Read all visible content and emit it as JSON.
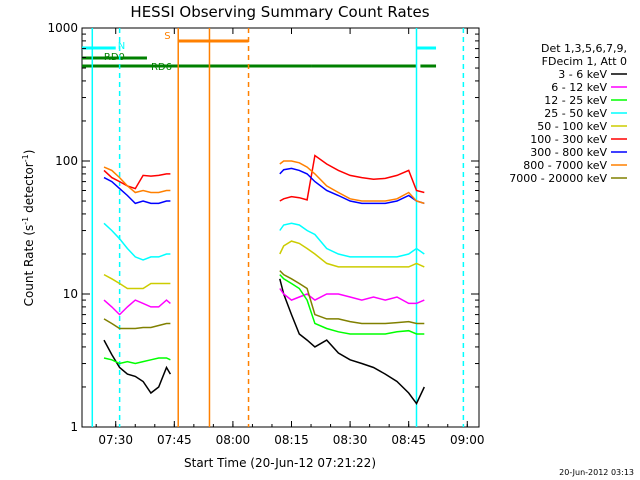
{
  "chart_data": {
    "type": "line",
    "title": "HESSI Observing Summary Count Rates",
    "xlabel": "Start Time (20-Jun-12 07:21:22)",
    "ylabel_main": "Count Rate (s",
    "ylabel_sup1": "-1",
    "ylabel_mid": " detector",
    "ylabel_sup2": "-1",
    "ylabel_end": ")",
    "yscale": "log",
    "ylim": [
      1,
      1000
    ],
    "xlim": [
      "07:21:22",
      "09:03:00"
    ],
    "x_ticks": [
      "07:30",
      "07:45",
      "08:00",
      "08:15",
      "08:30",
      "08:45",
      "09:00"
    ],
    "y_ticks": [
      "1",
      "10",
      "100",
      "1000"
    ],
    "stamp": "20-Jun-2012 03:13",
    "legend_header": [
      "Det 1,3,5,6,7,9,",
      "FDecim 1, Att 0"
    ],
    "series": [
      {
        "name": "3 - 6 keV",
        "color": "#000000",
        "x": [
          "07:27",
          "07:29",
          "07:31",
          "07:33",
          "07:35",
          "07:37",
          "07:39",
          "07:41",
          "07:43",
          "07:44",
          "08:12",
          "08:13",
          "08:15",
          "08:17",
          "08:19",
          "08:21",
          "08:24",
          "08:27",
          "08:30",
          "08:33",
          "08:36",
          "08:39",
          "08:42",
          "08:45",
          "08:47",
          "08:49"
        ],
        "y": [
          4.5,
          3.5,
          2.8,
          2.5,
          2.4,
          2.2,
          1.8,
          2.0,
          2.8,
          2.5,
          13,
          10,
          7,
          5,
          4.5,
          4,
          4.5,
          3.6,
          3.2,
          3,
          2.8,
          2.5,
          2.2,
          1.8,
          1.5,
          2
        ]
      },
      {
        "name": "6 - 12 keV",
        "color": "#ff00ff",
        "x": [
          "07:27",
          "07:29",
          "07:31",
          "07:33",
          "07:35",
          "07:37",
          "07:39",
          "07:41",
          "07:43",
          "07:44",
          "08:12",
          "08:13",
          "08:15",
          "08:17",
          "08:19",
          "08:21",
          "08:24",
          "08:27",
          "08:30",
          "08:33",
          "08:36",
          "08:39",
          "08:42",
          "08:45",
          "08:47",
          "08:49"
        ],
        "y": [
          9,
          8,
          7,
          8,
          9,
          8.5,
          8,
          8,
          9,
          8.5,
          11,
          10,
          9,
          9.5,
          10,
          9,
          10,
          10,
          9.5,
          9,
          9.5,
          9,
          9.5,
          8.5,
          8.5,
          9
        ]
      },
      {
        "name": "12 - 25 keV",
        "color": "#00ff00",
        "x": [
          "07:27",
          "07:29",
          "07:31",
          "07:33",
          "07:35",
          "07:37",
          "07:39",
          "07:41",
          "07:43",
          "07:44",
          "08:12",
          "08:13",
          "08:15",
          "08:17",
          "08:19",
          "08:21",
          "08:24",
          "08:27",
          "08:30",
          "08:33",
          "08:36",
          "08:39",
          "08:42",
          "08:45",
          "08:47",
          "08:49"
        ],
        "y": [
          3.3,
          3.2,
          3.0,
          3.1,
          3.0,
          3.1,
          3.2,
          3.3,
          3.3,
          3.2,
          14,
          13,
          12,
          11,
          9,
          6,
          5.5,
          5.2,
          5,
          5,
          5,
          5,
          5.2,
          5.3,
          5,
          5
        ]
      },
      {
        "name": "25 - 50 keV",
        "color": "#00ffff",
        "x": [
          "07:27",
          "07:29",
          "07:31",
          "07:33",
          "07:35",
          "07:37",
          "07:39",
          "07:41",
          "07:43",
          "07:44",
          "08:12",
          "08:13",
          "08:15",
          "08:17",
          "08:19",
          "08:21",
          "08:24",
          "08:27",
          "08:30",
          "08:33",
          "08:36",
          "08:39",
          "08:42",
          "08:45",
          "08:47",
          "08:49"
        ],
        "y": [
          34,
          30,
          26,
          22,
          19,
          18,
          19,
          19,
          20,
          20,
          30,
          33,
          34,
          33,
          30,
          28,
          22,
          20,
          19,
          19,
          19,
          19,
          19,
          20,
          22,
          20
        ]
      },
      {
        "name": "50 - 100 keV",
        "color": "#cccc00",
        "x": [
          "07:27",
          "07:29",
          "07:31",
          "07:33",
          "07:35",
          "07:37",
          "07:39",
          "07:41",
          "07:43",
          "07:44",
          "08:12",
          "08:13",
          "08:15",
          "08:17",
          "08:19",
          "08:21",
          "08:24",
          "08:27",
          "08:30",
          "08:33",
          "08:36",
          "08:39",
          "08:42",
          "08:45",
          "08:47",
          "08:49"
        ],
        "y": [
          14,
          13,
          12,
          11,
          11,
          11,
          12,
          12,
          12,
          12,
          20,
          23,
          25,
          24,
          22,
          20,
          17,
          16,
          16,
          16,
          16,
          16,
          16,
          16,
          17,
          16
        ]
      },
      {
        "name": "100 - 300 keV",
        "color": "#ff0000",
        "x": [
          "07:27",
          "07:29",
          "07:31",
          "07:33",
          "07:35",
          "07:37",
          "07:39",
          "07:41",
          "07:43",
          "07:44",
          "08:12",
          "08:13",
          "08:15",
          "08:17",
          "08:19",
          "08:21",
          "08:24",
          "08:27",
          "08:30",
          "08:33",
          "08:36",
          "08:39",
          "08:42",
          "08:45",
          "08:47",
          "08:49"
        ],
        "y": [
          85,
          75,
          70,
          65,
          62,
          78,
          77,
          78,
          80,
          80,
          50,
          52,
          54,
          53,
          51,
          110,
          95,
          85,
          78,
          75,
          73,
          74,
          78,
          85,
          60,
          58
        ]
      },
      {
        "name": "300 - 800 keV",
        "color": "#0000ff",
        "x": [
          "07:27",
          "07:29",
          "07:31",
          "07:33",
          "07:35",
          "07:37",
          "07:39",
          "07:41",
          "07:43",
          "07:44",
          "08:12",
          "08:13",
          "08:15",
          "08:17",
          "08:19",
          "08:21",
          "08:24",
          "08:27",
          "08:30",
          "08:33",
          "08:36",
          "08:39",
          "08:42",
          "08:45",
          "08:47",
          "08:49"
        ],
        "y": [
          75,
          70,
          62,
          55,
          48,
          50,
          48,
          48,
          50,
          50,
          80,
          86,
          88,
          85,
          80,
          70,
          60,
          55,
          50,
          48,
          48,
          48,
          50,
          55,
          50,
          48
        ]
      },
      {
        "name": "800 - 7000 keV",
        "color": "#ff8000",
        "x": [
          "07:27",
          "07:29",
          "07:31",
          "07:33",
          "07:35",
          "07:37",
          "07:39",
          "07:41",
          "07:43",
          "07:44",
          "08:12",
          "08:13",
          "08:15",
          "08:17",
          "08:19",
          "08:21",
          "08:24",
          "08:27",
          "08:30",
          "08:33",
          "08:36",
          "08:39",
          "08:42",
          "08:45",
          "08:47",
          "08:49"
        ],
        "y": [
          90,
          85,
          75,
          65,
          58,
          60,
          58,
          58,
          60,
          60,
          95,
          100,
          100,
          97,
          90,
          80,
          65,
          58,
          52,
          50,
          50,
          50,
          52,
          58,
          50,
          48
        ]
      },
      {
        "name": "7000 - 20000 keV",
        "color": "#808000",
        "x": [
          "07:27",
          "07:29",
          "07:31",
          "07:33",
          "07:35",
          "07:37",
          "07:39",
          "07:41",
          "07:43",
          "07:44",
          "08:12",
          "08:13",
          "08:15",
          "08:17",
          "08:19",
          "08:21",
          "08:24",
          "08:27",
          "08:30",
          "08:33",
          "08:36",
          "08:39",
          "08:42",
          "08:45",
          "08:47",
          "08:49"
        ],
        "y": [
          6.5,
          6,
          5.5,
          5.5,
          5.5,
          5.6,
          5.6,
          5.8,
          6,
          6,
          15,
          14,
          13,
          12,
          11,
          7,
          6.5,
          6.5,
          6.2,
          6,
          6,
          6,
          6.1,
          6.2,
          6,
          6
        ]
      }
    ],
    "flags": [
      {
        "label": "N",
        "color": "#00ffff",
        "segments": [
          [
            "07:21:22",
            "07:30"
          ],
          [
            "08:47",
            "08:52"
          ]
        ]
      },
      {
        "label": "RD0",
        "color": "#008000",
        "segments": [
          [
            "07:21:22",
            "07:38"
          ]
        ]
      },
      {
        "label": "RD6",
        "color": "#008000",
        "segments": [
          [
            "07:21:22",
            "08:04"
          ],
          [
            "08:04",
            "08:20"
          ],
          [
            "08:20",
            "08:47"
          ],
          [
            "08:48",
            "08:52"
          ]
        ]
      },
      {
        "label": "S",
        "color": "#ff8000",
        "segments": [
          [
            "07:46",
            "08:04"
          ]
        ]
      }
    ],
    "vlines": [
      {
        "time": "07:24",
        "color": "#00ffff",
        "style": "solid"
      },
      {
        "time": "07:31",
        "color": "#00ffff",
        "style": "dashed"
      },
      {
        "time": "07:46",
        "color": "#ff8000",
        "style": "solid"
      },
      {
        "time": "07:54",
        "color": "#ff8000",
        "style": "solid"
      },
      {
        "time": "08:04",
        "color": "#ff8000",
        "style": "dashed"
      },
      {
        "time": "08:47",
        "color": "#00ffff",
        "style": "solid"
      },
      {
        "time": "08:59",
        "color": "#00ffff",
        "style": "dashed"
      }
    ]
  }
}
